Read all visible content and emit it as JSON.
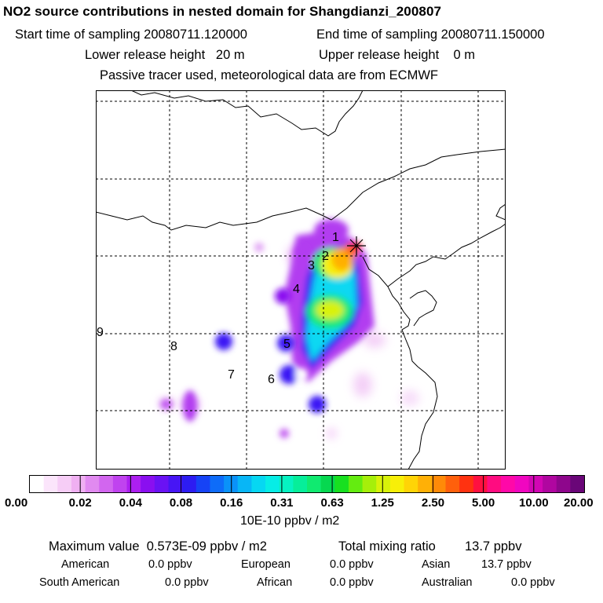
{
  "header": {
    "title": "NO2 source contributions in nested domain for Shangdianzi_200807",
    "start_time": "Start time of sampling 20080711.120000",
    "end_time": "End time of sampling 20080711.150000",
    "lower_height": "Lower release height   20 m",
    "upper_height": "Upper release height    0 m",
    "note": "Passive tracer used, meteorological data are from ECMWF"
  },
  "map": {
    "site_marker": "star-cross-icon",
    "labels": [
      "1",
      "2",
      "3",
      "4",
      "5",
      "6",
      "7",
      "8",
      "9"
    ]
  },
  "colorbar": {
    "units": "10E-10 ppbv / m2",
    "tick_labels": [
      "0.00",
      "0.02",
      "0.04",
      "0.08",
      "0.16",
      "0.31",
      "0.63",
      "1.25",
      "2.50",
      "5.00",
      "10.00",
      "20.00"
    ],
    "colors": [
      "#ffffff",
      "#fbe5fb",
      "#f6cdf6",
      "#f0b0f2",
      "#e18af0",
      "#d266ef",
      "#c043ef",
      "#ac1ff0",
      "#8a0ff0",
      "#6a12f4",
      "#4715f5",
      "#2d1cf2",
      "#1643f6",
      "#0e6cf9",
      "#0a92f9",
      "#08b6f6",
      "#06d7f2",
      "#06ede6",
      "#06f2c2",
      "#06ee9a",
      "#10ea70",
      "#06d850",
      "#18e020",
      "#64ec10",
      "#a6ef0a",
      "#d8f20a",
      "#f7ef08",
      "#ffd406",
      "#ffb006",
      "#ff8a08",
      "#ff600c",
      "#ff3210",
      "#ff1040",
      "#ff0c80",
      "#ff08a8",
      "#f006c0",
      "#d206b4",
      "#b006a0",
      "#8e068c",
      "#6a0678"
    ]
  },
  "stats": {
    "max_value": "Maximum value  0.573E-09 ppbv / m2",
    "total_mixing": "Total mixing ratio",
    "total_value": "13.7 ppbv",
    "regions": [
      {
        "name": "American",
        "value": "0.0 ppbv"
      },
      {
        "name": "European",
        "value": "0.0 ppbv"
      },
      {
        "name": "Asian",
        "value": "13.7 ppbv"
      },
      {
        "name": "South American",
        "value": "0.0 ppbv"
      },
      {
        "name": "African",
        "value": "0.0 ppbv"
      },
      {
        "name": "Australian",
        "value": "0.0 ppbv"
      }
    ]
  }
}
